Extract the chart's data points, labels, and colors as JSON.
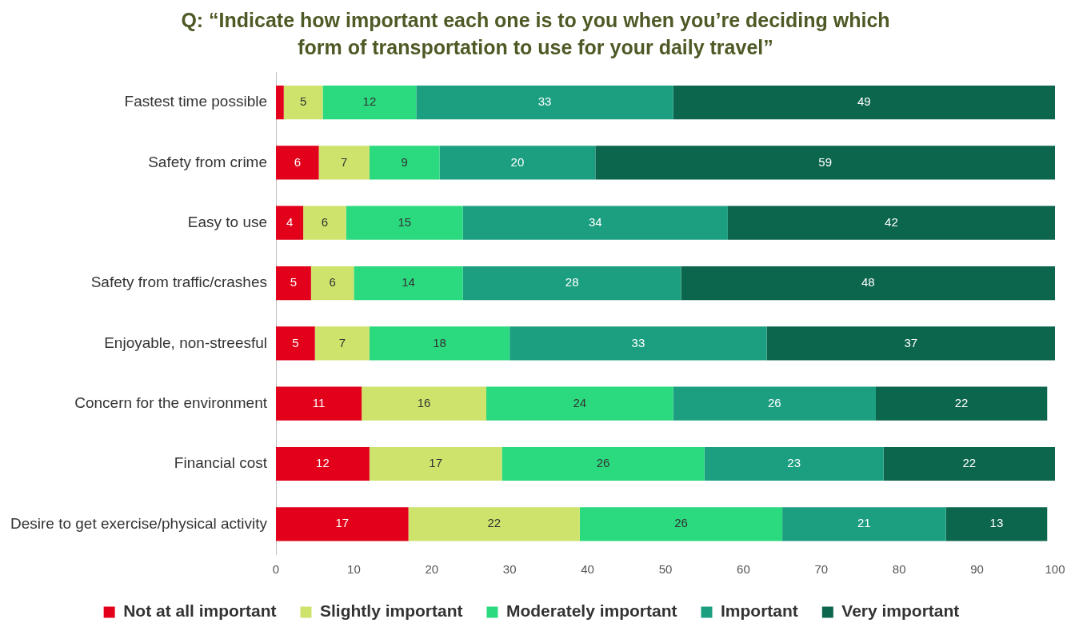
{
  "chart_data": {
    "type": "bar",
    "orientation": "horizontal",
    "stacked": true,
    "title": "Q: “Indicate how important each one is to you when you’re deciding which form of transportation to use for your daily travel”",
    "categories": [
      "Fastest time possible",
      "Safety from crime",
      "Easy to use",
      "Safety from traffic/crashes",
      "Enjoyable, non-streesful",
      "Concern for the environment",
      "Financial cost",
      "Desire to get exercise/physical activity"
    ],
    "series": [
      {
        "name": "Not at all important",
        "color": "#e2001a",
        "values": [
          1,
          5.5,
          3.5,
          4.5,
          5,
          11,
          12,
          17
        ],
        "value_labels": [
          null,
          "6",
          "4",
          "5",
          "5",
          "11",
          "12",
          "17"
        ]
      },
      {
        "name": "Slightly important",
        "color": "#cde36b",
        "values": [
          5,
          6.5,
          5.5,
          5.5,
          7,
          16,
          17,
          22
        ],
        "value_labels": [
          "5",
          "7",
          "6",
          "6",
          "7",
          "16",
          "17",
          "22"
        ]
      },
      {
        "name": "Moderately important",
        "color": "#2bd97f",
        "values": [
          12,
          9,
          15,
          14,
          18,
          24,
          26,
          26
        ],
        "value_labels": [
          "12",
          "9",
          "15",
          "14",
          "18",
          "24",
          "26",
          "26"
        ]
      },
      {
        "name": "Important",
        "color": "#1c9f80",
        "values": [
          33,
          20,
          34,
          28,
          33,
          26,
          23,
          21
        ],
        "value_labels": [
          "33",
          "20",
          "34",
          "28",
          "33",
          "26",
          "23",
          "21"
        ]
      },
      {
        "name": "Very important",
        "color": "#0c654d",
        "values": [
          49,
          59,
          42,
          48,
          37,
          22,
          22,
          13
        ],
        "value_labels": [
          "49",
          "59",
          "42",
          "48",
          "37",
          "22",
          "22",
          "13"
        ]
      }
    ],
    "xlim": [
      0,
      100
    ],
    "xticks": [
      0,
      10,
      20,
      30,
      40,
      50,
      60,
      70,
      80,
      90,
      100
    ],
    "grid": false,
    "legend": "bottom"
  }
}
